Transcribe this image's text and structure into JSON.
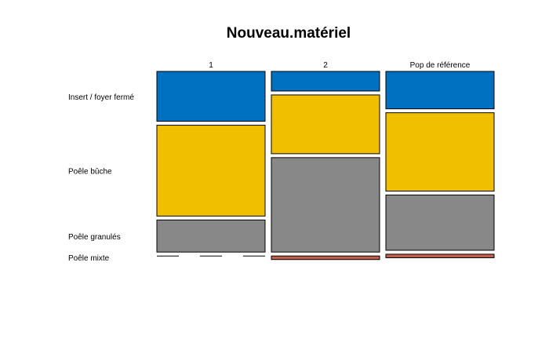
{
  "chart_data": {
    "type": "mosaic",
    "title": "Nouveau.matériel",
    "columns": [
      "1",
      "2",
      "Pop de référence"
    ],
    "rows": [
      "Insert / foyer fermé",
      "Poêle bûche",
      "Poêle granulés",
      "Poêle mixte"
    ],
    "colors": [
      "#0070C0",
      "#F0C000",
      "#888888",
      "#C0604B"
    ],
    "column_widths": [
      0.333,
      0.333,
      0.333
    ],
    "proportions": [
      [
        0.28,
        0.51,
        0.18,
        0.0
      ],
      [
        0.11,
        0.33,
        0.53,
        0.02
      ],
      [
        0.21,
        0.44,
        0.31,
        0.02
      ]
    ]
  }
}
